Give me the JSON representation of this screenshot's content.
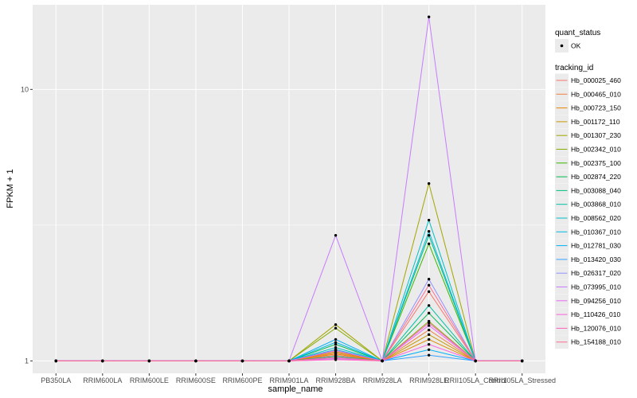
{
  "chart_data": {
    "type": "line",
    "title": "",
    "xlabel": "sample_name",
    "ylabel": "FPKM + 1",
    "y_scale": "log10",
    "ylim": [
      0.9,
      20.5
    ],
    "y_ticks": [
      1,
      10
    ],
    "y_tick_labels": [
      "1",
      "10"
    ],
    "grid": true,
    "legend_position": "right",
    "categories": [
      "PB350LA",
      "RRIM600LA",
      "RRIM600LE",
      "RRIM600SE",
      "RRIM600PE",
      "RRIM901LA",
      "RRIM928BA",
      "RRIM928LA",
      "RRIM928LE",
      "RRII105LA_Control",
      "RRII105LA_Stressed"
    ],
    "quant_status_legend": {
      "title": "quant_status",
      "entries": [
        "OK"
      ]
    },
    "series_legend_title": "tracking_id",
    "series": [
      {
        "name": "Hb_000025_460",
        "color": "#F8766D",
        "values": [
          1,
          1,
          1,
          1,
          1,
          1,
          1.05,
          1,
          1.8,
          1,
          1
        ]
      },
      {
        "name": "Hb_000465_010",
        "color": "#F07F41",
        "values": [
          1,
          1,
          1,
          1,
          1,
          1,
          1.07,
          1,
          1.3,
          1,
          1
        ]
      },
      {
        "name": "Hb_000723_150",
        "color": "#E58700",
        "values": [
          1,
          1,
          1,
          1,
          1,
          1,
          1.06,
          1,
          1.2,
          1,
          1
        ]
      },
      {
        "name": "Hb_001172_110",
        "color": "#C99800",
        "values": [
          1,
          1,
          1,
          1,
          1,
          1,
          1.08,
          1,
          1.25,
          1,
          1
        ]
      },
      {
        "name": "Hb_001307_230",
        "color": "#A3A500",
        "values": [
          1,
          1,
          1,
          1,
          1,
          1,
          1.36,
          1,
          4.5,
          1,
          1
        ]
      },
      {
        "name": "Hb_002342_010",
        "color": "#86AC00",
        "values": [
          1,
          1,
          1,
          1,
          1,
          1,
          1.32,
          1,
          1.4,
          1,
          1
        ]
      },
      {
        "name": "Hb_002375_100",
        "color": "#39B600",
        "values": [
          1,
          1,
          1,
          1,
          1,
          1,
          1.1,
          1,
          2.7,
          1,
          1
        ]
      },
      {
        "name": "Hb_002874_220",
        "color": "#00BB4E",
        "values": [
          1,
          1,
          1,
          1,
          1,
          1,
          1.15,
          1,
          1.5,
          1,
          1
        ]
      },
      {
        "name": "Hb_003088_040",
        "color": "#00BF7D",
        "values": [
          1,
          1,
          1,
          1,
          1,
          1,
          1.04,
          1,
          2.9,
          1,
          1
        ]
      },
      {
        "name": "Hb_003868_010",
        "color": "#00C1A3",
        "values": [
          1,
          1,
          1,
          1,
          1,
          1,
          1.02,
          1,
          1.6,
          1,
          1
        ]
      },
      {
        "name": "Hb_008562_020",
        "color": "#00BFC4",
        "values": [
          1,
          1,
          1,
          1,
          1,
          1,
          1.12,
          1,
          3.3,
          1,
          1
        ]
      },
      {
        "name": "Hb_010367_010",
        "color": "#00BAE0",
        "values": [
          1,
          1,
          1,
          1,
          1,
          1,
          1.17,
          1,
          3.0,
          1,
          1
        ]
      },
      {
        "name": "Hb_012781_030",
        "color": "#00B0F6",
        "values": [
          1,
          1,
          1,
          1,
          1,
          1,
          1.2,
          1,
          1.1,
          1,
          1
        ]
      },
      {
        "name": "Hb_013420_030",
        "color": "#35A2FF",
        "values": [
          1,
          1,
          1,
          1,
          1,
          1,
          1.1,
          1,
          1.05,
          1,
          1
        ]
      },
      {
        "name": "Hb_026317_020",
        "color": "#9590FF",
        "values": [
          1,
          1,
          1,
          1,
          1,
          1,
          1.03,
          1,
          2.0,
          1,
          1
        ]
      },
      {
        "name": "Hb_073995_010",
        "color": "#C77CFF",
        "values": [
          1,
          1,
          1,
          1,
          1,
          1,
          2.9,
          1,
          18.5,
          1,
          1
        ]
      },
      {
        "name": "Hb_094256_010",
        "color": "#E76BF3",
        "values": [
          1,
          1,
          1,
          1,
          1,
          1,
          1.02,
          1,
          1.35,
          1,
          1
        ]
      },
      {
        "name": "Hb_110426_010",
        "color": "#FA62DB",
        "values": [
          1,
          1,
          1,
          1,
          1,
          1,
          1.09,
          1,
          1.15,
          1,
          1
        ]
      },
      {
        "name": "Hb_120076_010",
        "color": "#FF62BC",
        "values": [
          1,
          1,
          1,
          1,
          1,
          1,
          1.01,
          1,
          1.38,
          1,
          1
        ]
      },
      {
        "name": "Hb_154188_010",
        "color": "#FF6C91",
        "values": [
          1,
          1,
          1,
          1,
          1,
          1,
          1.03,
          1,
          1.9,
          1,
          1
        ]
      }
    ]
  },
  "colors": {
    "panel_background": "#EBEBEB",
    "grid_major": "#FFFFFF",
    "point": "#000000"
  }
}
